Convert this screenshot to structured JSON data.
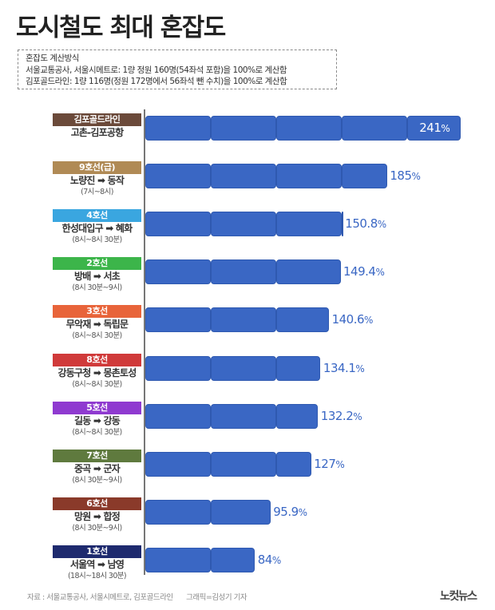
{
  "header": {
    "title": "도시철도 최대 혼잡도"
  },
  "note": {
    "heading": "혼잡도 계산방식",
    "line1": "서울교통공사, 서울시메트로: 1량 정원 160명(54좌석 포함)을 100%로 계산함",
    "line2": "김포골드라인: 1량 116명(정원 172명에서 56좌석 뺀 수치)을 100%로 계산함"
  },
  "colors": {
    "bar": "#3a67c4",
    "axis": "#777777"
  },
  "rows": [
    {
      "line": "김포골드라인",
      "route": "고촌-김포공항",
      "time": "",
      "value": 241,
      "label": "241",
      "badge_color": "#6b4a3a",
      "value_inside": true
    },
    {
      "line": "9호선(급)",
      "route": "노량진 ➡ 동작",
      "time": "(7시~8시)",
      "value": 185,
      "label": "185",
      "badge_color": "#b08a55",
      "value_inside": false
    },
    {
      "line": "4호선",
      "route": "한성대입구 ➡ 혜화",
      "time": "(8시~8시 30분)",
      "value": 150.8,
      "label": "150.8",
      "badge_color": "#3aa6e0",
      "value_inside": false
    },
    {
      "line": "2호선",
      "route": "방배 ➡ 서초",
      "time": "(8시 30분~9시)",
      "value": 149.4,
      "label": "149.4",
      "badge_color": "#3cb54a",
      "value_inside": false
    },
    {
      "line": "3호선",
      "route": "무악재 ➡ 독립문",
      "time": "(8시~8시 30분)",
      "value": 140.6,
      "label": "140.6",
      "badge_color": "#e8643a",
      "value_inside": false
    },
    {
      "line": "8호선",
      "route": "강동구청 ➡ 몽촌토성",
      "time": "(8시~8시 30분)",
      "value": 134.1,
      "label": "134.1",
      "badge_color": "#d03a3a",
      "value_inside": false
    },
    {
      "line": "5호선",
      "route": "길동 ➡ 강동",
      "time": "(8시~8시 30분)",
      "value": 132.2,
      "label": "132.2",
      "badge_color": "#8f3ad0",
      "value_inside": false
    },
    {
      "line": "7호선",
      "route": "중곡 ➡ 군자",
      "time": "(8시 30분~9시)",
      "value": 127,
      "label": "127",
      "badge_color": "#5f7a3e",
      "value_inside": false
    },
    {
      "line": "6호선",
      "route": "망원 ➡ 합정",
      "time": "(8시 30분~9시)",
      "value": 95.9,
      "label": "95.9",
      "badge_color": "#8a3a2a",
      "value_inside": false
    },
    {
      "line": "1호선",
      "route": "서울역 ➡ 남영",
      "time": "(18시~18시 30분)",
      "value": 84,
      "label": "84",
      "badge_color": "#1e2a6e",
      "value_inside": false
    }
  ],
  "pct_symbol": "%",
  "footer": {
    "source": "자료 : 서울교통공사, 서울시메트로, 김포골드라인",
    "credit": "그래픽=김성기 기자",
    "logo": "노컷뉴스"
  },
  "chart_data": {
    "type": "bar",
    "orientation": "horizontal",
    "title": "도시철도 최대 혼잡도",
    "categories": [
      "김포골드라인 고촌-김포공항",
      "9호선(급) 노량진→동작 (7시~8시)",
      "4호선 한성대입구→혜화 (8시~8시 30분)",
      "2호선 방배→서초 (8시 30분~9시)",
      "3호선 무악재→독립문 (8시~8시 30분)",
      "8호선 강동구청→몽촌토성 (8시~8시 30분)",
      "5호선 길동→강동 (8시~8시 30분)",
      "7호선 중곡→군자 (8시 30분~9시)",
      "6호선 망원→합정 (8시 30분~9시)",
      "1호선 서울역→남영 (18시~18시 30분)"
    ],
    "values": [
      241,
      185,
      150.8,
      149.4,
      140.6,
      134.1,
      132.2,
      127,
      95.9,
      84
    ],
    "unit": "%",
    "xlabel": "",
    "ylabel": "",
    "xlim": [
      0,
      250
    ],
    "segment_size": 50,
    "grid": false,
    "legend": null,
    "annotations": [
      "혼잡도 계산방식",
      "서울교통공사, 서울시메트로: 1량 정원 160명(54좌석 포함)을 100%로 계산함",
      "김포골드라인: 1량 116명(정원 172명에서 56좌석 뺀 수치)을 100%로 계산함"
    ],
    "source": "자료 : 서울교통공사, 서울시메트로, 김포골드라인"
  }
}
